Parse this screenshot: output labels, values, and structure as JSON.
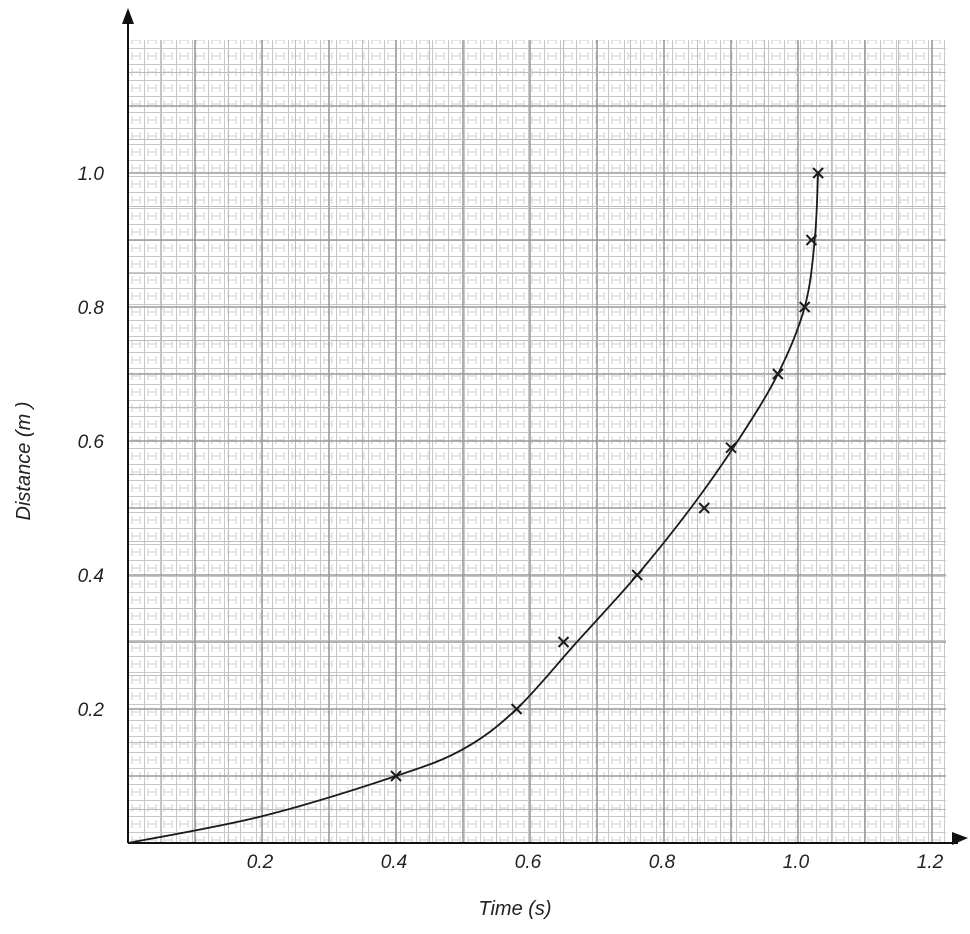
{
  "chart_data": {
    "type": "scatter",
    "xlabel": "Time (s)",
    "ylabel": "Distance (m )",
    "xlim": [
      0,
      1.2
    ],
    "ylim": [
      0,
      1.2
    ],
    "x_ticks": [
      "0.2",
      "0.4",
      "0.6",
      "0.8",
      "1.0",
      "1.2"
    ],
    "y_ticks": [
      "0.2",
      "0.4",
      "0.6",
      "0.8",
      "1.0"
    ],
    "grid": true,
    "series": [
      {
        "marker": "x",
        "points": [
          {
            "x": 0.4,
            "y": 0.1
          },
          {
            "x": 0.58,
            "y": 0.2
          },
          {
            "x": 0.65,
            "y": 0.3
          },
          {
            "x": 0.76,
            "y": 0.4
          },
          {
            "x": 0.86,
            "y": 0.5
          },
          {
            "x": 0.9,
            "y": 0.59
          },
          {
            "x": 0.97,
            "y": 0.7
          },
          {
            "x": 1.01,
            "y": 0.8
          },
          {
            "x": 1.02,
            "y": 0.9
          },
          {
            "x": 1.03,
            "y": 1.0
          }
        ]
      }
    ],
    "fit_curve": [
      {
        "x": 0.0,
        "y": 0.0
      },
      {
        "x": 0.2,
        "y": 0.04
      },
      {
        "x": 0.4,
        "y": 0.1
      },
      {
        "x": 0.5,
        "y": 0.14
      },
      {
        "x": 0.58,
        "y": 0.2
      },
      {
        "x": 0.67,
        "y": 0.3
      },
      {
        "x": 0.76,
        "y": 0.4
      },
      {
        "x": 0.84,
        "y": 0.5
      },
      {
        "x": 0.91,
        "y": 0.6
      },
      {
        "x": 0.97,
        "y": 0.7
      },
      {
        "x": 1.01,
        "y": 0.8
      },
      {
        "x": 1.025,
        "y": 0.9
      },
      {
        "x": 1.03,
        "y": 1.0
      }
    ],
    "colors": {
      "curve": "#1a1a1a",
      "marker": "#1a1a1a",
      "grid": "#9a9a9a",
      "axis": "#111111"
    }
  }
}
